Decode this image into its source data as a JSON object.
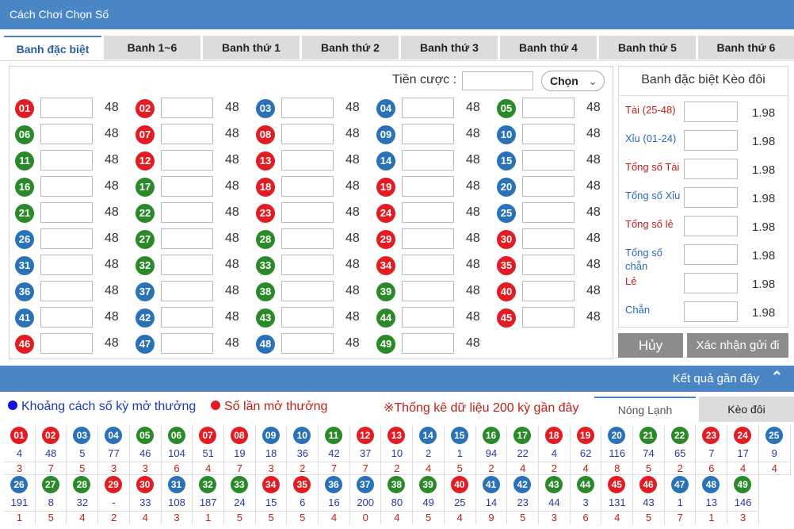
{
  "header": {
    "title": "Cách Chơi Chọn Số"
  },
  "tabs": [
    "Banh đặc biệt",
    "Banh 1~6",
    "Banh thứ 1",
    "Banh thứ 2",
    "Banh thứ 3",
    "Banh thứ 4",
    "Banh thứ 5",
    "Banh thứ 6"
  ],
  "bet": {
    "label": "Tiền cược :",
    "select_value": "Chọn"
  },
  "numbers": [
    {
      "n": "01",
      "c": "r",
      "odd": "48"
    },
    {
      "n": "02",
      "c": "r",
      "odd": "48"
    },
    {
      "n": "03",
      "c": "b",
      "odd": "48"
    },
    {
      "n": "04",
      "c": "b",
      "odd": "48"
    },
    {
      "n": "05",
      "c": "g",
      "odd": "48"
    },
    {
      "n": "06",
      "c": "g",
      "odd": "48"
    },
    {
      "n": "07",
      "c": "r",
      "odd": "48"
    },
    {
      "n": "08",
      "c": "r",
      "odd": "48"
    },
    {
      "n": "09",
      "c": "b",
      "odd": "48"
    },
    {
      "n": "10",
      "c": "b",
      "odd": "48"
    },
    {
      "n": "11",
      "c": "g",
      "odd": "48"
    },
    {
      "n": "12",
      "c": "r",
      "odd": "48"
    },
    {
      "n": "13",
      "c": "r",
      "odd": "48"
    },
    {
      "n": "14",
      "c": "b",
      "odd": "48"
    },
    {
      "n": "15",
      "c": "b",
      "odd": "48"
    },
    {
      "n": "16",
      "c": "g",
      "odd": "48"
    },
    {
      "n": "17",
      "c": "g",
      "odd": "48"
    },
    {
      "n": "18",
      "c": "r",
      "odd": "48"
    },
    {
      "n": "19",
      "c": "r",
      "odd": "48"
    },
    {
      "n": "20",
      "c": "b",
      "odd": "48"
    },
    {
      "n": "21",
      "c": "g",
      "odd": "48"
    },
    {
      "n": "22",
      "c": "g",
      "odd": "48"
    },
    {
      "n": "23",
      "c": "r",
      "odd": "48"
    },
    {
      "n": "24",
      "c": "r",
      "odd": "48"
    },
    {
      "n": "25",
      "c": "b",
      "odd": "48"
    },
    {
      "n": "26",
      "c": "b",
      "odd": "48"
    },
    {
      "n": "27",
      "c": "g",
      "odd": "48"
    },
    {
      "n": "28",
      "c": "g",
      "odd": "48"
    },
    {
      "n": "29",
      "c": "r",
      "odd": "48"
    },
    {
      "n": "30",
      "c": "r",
      "odd": "48"
    },
    {
      "n": "31",
      "c": "b",
      "odd": "48"
    },
    {
      "n": "32",
      "c": "g",
      "odd": "48"
    },
    {
      "n": "33",
      "c": "g",
      "odd": "48"
    },
    {
      "n": "34",
      "c": "r",
      "odd": "48"
    },
    {
      "n": "35",
      "c": "r",
      "odd": "48"
    },
    {
      "n": "36",
      "c": "b",
      "odd": "48"
    },
    {
      "n": "37",
      "c": "b",
      "odd": "48"
    },
    {
      "n": "38",
      "c": "g",
      "odd": "48"
    },
    {
      "n": "39",
      "c": "g",
      "odd": "48"
    },
    {
      "n": "40",
      "c": "r",
      "odd": "48"
    },
    {
      "n": "41",
      "c": "b",
      "odd": "48"
    },
    {
      "n": "42",
      "c": "b",
      "odd": "48"
    },
    {
      "n": "43",
      "c": "g",
      "odd": "48"
    },
    {
      "n": "44",
      "c": "g",
      "odd": "48"
    },
    {
      "n": "45",
      "c": "r",
      "odd": "48"
    },
    {
      "n": "46",
      "c": "r",
      "odd": "48"
    },
    {
      "n": "47",
      "c": "b",
      "odd": "48"
    },
    {
      "n": "48",
      "c": "b",
      "odd": "48"
    },
    {
      "n": "49",
      "c": "g",
      "odd": "48"
    }
  ],
  "side": {
    "title": "Banh đặc biệt Kèo đôi",
    "rows": [
      {
        "label": "Tài (25-48)",
        "color": "red",
        "odd": "1.98"
      },
      {
        "label": "Xỉu (01-24)",
        "color": "blue",
        "odd": "1.98"
      },
      {
        "label": "Tổng số Tài",
        "color": "red",
        "odd": "1.98"
      },
      {
        "label": "Tổng số Xỉu",
        "color": "blue",
        "odd": "1.98"
      },
      {
        "label": "Tổng số lẻ",
        "color": "red",
        "odd": "1.98"
      },
      {
        "label": "Tổng số chẵn",
        "color": "blue",
        "odd": "1.98"
      },
      {
        "label": "Lẻ",
        "color": "red",
        "odd": "1.98"
      },
      {
        "label": "Chẵn",
        "color": "blue",
        "odd": "1.98"
      }
    ],
    "cancel": "Hủy",
    "confirm": "Xác nhận gửi đi"
  },
  "results": {
    "title": "Kết quả gần đây",
    "legend": [
      "Khoảng cách số kỳ mở thưởng",
      "Số lần mở thưởng",
      "※Thống kê dữ liệu 200 kỳ gần đây"
    ],
    "tab_active": "Nóng Lạnh",
    "tab_other": "Kèo đôi",
    "row1": [
      {
        "n": "01",
        "c": "r",
        "a": "4",
        "b": "3"
      },
      {
        "n": "02",
        "c": "r",
        "a": "48",
        "b": "7"
      },
      {
        "n": "03",
        "c": "b",
        "a": "5",
        "b": "5"
      },
      {
        "n": "04",
        "c": "b",
        "a": "77",
        "b": "3"
      },
      {
        "n": "05",
        "c": "g",
        "a": "46",
        "b": "3"
      },
      {
        "n": "06",
        "c": "g",
        "a": "104",
        "b": "6"
      },
      {
        "n": "07",
        "c": "r",
        "a": "51",
        "b": "4"
      },
      {
        "n": "08",
        "c": "r",
        "a": "19",
        "b": "7"
      },
      {
        "n": "09",
        "c": "b",
        "a": "18",
        "b": "3"
      },
      {
        "n": "10",
        "c": "b",
        "a": "36",
        "b": "2"
      },
      {
        "n": "11",
        "c": "g",
        "a": "42",
        "b": "7"
      },
      {
        "n": "12",
        "c": "r",
        "a": "37",
        "b": "7"
      },
      {
        "n": "13",
        "c": "r",
        "a": "10",
        "b": "2"
      },
      {
        "n": "14",
        "c": "b",
        "a": "2",
        "b": "4"
      },
      {
        "n": "15",
        "c": "b",
        "a": "1",
        "b": "5"
      },
      {
        "n": "16",
        "c": "g",
        "a": "94",
        "b": "2"
      },
      {
        "n": "17",
        "c": "g",
        "a": "22",
        "b": "4"
      },
      {
        "n": "18",
        "c": "r",
        "a": "4",
        "b": "2"
      },
      {
        "n": "19",
        "c": "r",
        "a": "62",
        "b": "4"
      },
      {
        "n": "20",
        "c": "b",
        "a": "116",
        "b": "8"
      },
      {
        "n": "21",
        "c": "g",
        "a": "74",
        "b": "5"
      },
      {
        "n": "22",
        "c": "g",
        "a": "65",
        "b": "2"
      },
      {
        "n": "23",
        "c": "r",
        "a": "7",
        "b": "6"
      },
      {
        "n": "24",
        "c": "r",
        "a": "17",
        "b": "4"
      },
      {
        "n": "25",
        "c": "b",
        "a": "9",
        "b": "4"
      }
    ],
    "row2": [
      {
        "n": "26",
        "c": "b",
        "a": "191",
        "b": "1"
      },
      {
        "n": "27",
        "c": "g",
        "a": "8",
        "b": "5"
      },
      {
        "n": "28",
        "c": "g",
        "a": "32",
        "b": "4"
      },
      {
        "n": "29",
        "c": "r",
        "a": "-",
        "b": "2"
      },
      {
        "n": "30",
        "c": "r",
        "a": "33",
        "b": "4"
      },
      {
        "n": "31",
        "c": "b",
        "a": "108",
        "b": "3"
      },
      {
        "n": "32",
        "c": "g",
        "a": "187",
        "b": "1"
      },
      {
        "n": "33",
        "c": "g",
        "a": "24",
        "b": "5"
      },
      {
        "n": "34",
        "c": "r",
        "a": "15",
        "b": "5"
      },
      {
        "n": "35",
        "c": "r",
        "a": "6",
        "b": "5"
      },
      {
        "n": "36",
        "c": "b",
        "a": "16",
        "b": "4"
      },
      {
        "n": "37",
        "c": "b",
        "a": "200",
        "b": "0"
      },
      {
        "n": "38",
        "c": "g",
        "a": "80",
        "b": "4"
      },
      {
        "n": "39",
        "c": "g",
        "a": "49",
        "b": "5"
      },
      {
        "n": "40",
        "c": "r",
        "a": "25",
        "b": "4"
      },
      {
        "n": "41",
        "c": "b",
        "a": "14",
        "b": "9"
      },
      {
        "n": "42",
        "c": "b",
        "a": "23",
        "b": "5"
      },
      {
        "n": "43",
        "c": "g",
        "a": "44",
        "b": "3"
      },
      {
        "n": "44",
        "c": "g",
        "a": "3",
        "b": "6"
      },
      {
        "n": "45",
        "c": "r",
        "a": "131",
        "b": "4"
      },
      {
        "n": "46",
        "c": "r",
        "a": "43",
        "b": "5"
      },
      {
        "n": "47",
        "c": "b",
        "a": "1",
        "b": "7"
      },
      {
        "n": "48",
        "c": "b",
        "a": "13",
        "b": "1"
      },
      {
        "n": "49",
        "c": "g",
        "a": "146",
        "b": "3"
      }
    ]
  },
  "colors": {
    "red": "#e31b23",
    "green": "#2a8a2a",
    "blue": "#2a72b8",
    "accent": "#4a86c5",
    "legend_blue": "#1010e0",
    "legend_red": "#e31b23"
  }
}
